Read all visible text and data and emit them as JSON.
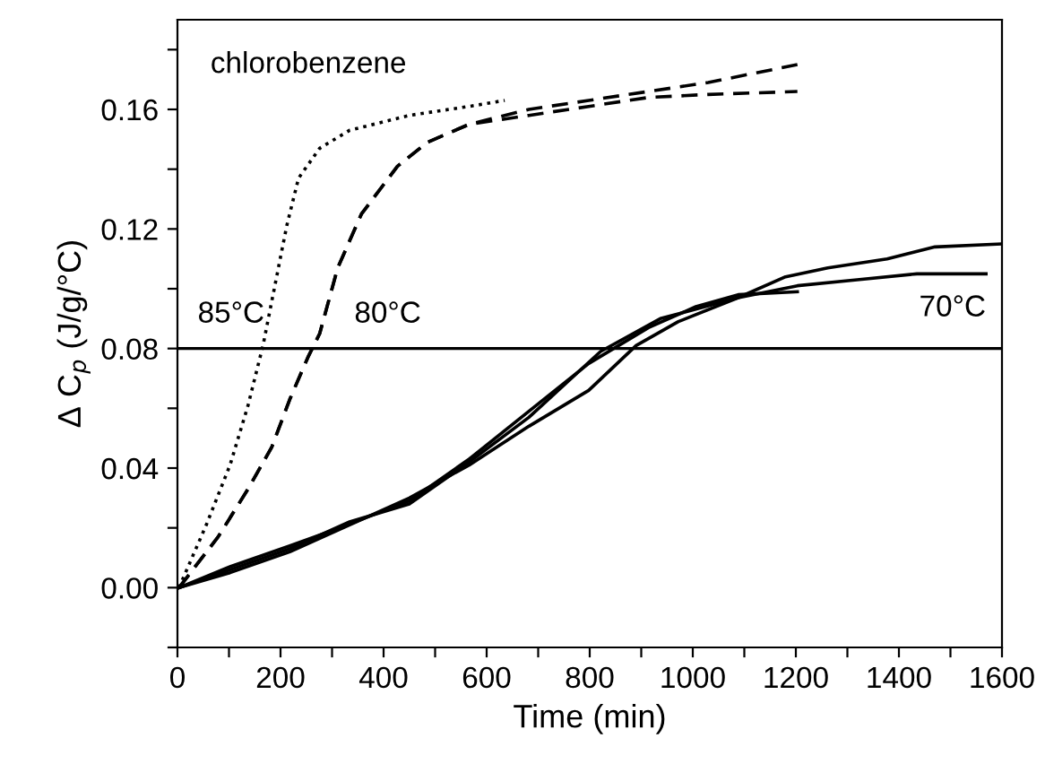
{
  "chart_data": {
    "type": "line",
    "xlabel": "Time (min)",
    "ylabel": "Δ C$_{p}$ (J/g/°C)",
    "xlim": [
      0,
      1600
    ],
    "ylim": [
      -0.02,
      0.19
    ],
    "xticks": [
      0,
      {
        "value": 100,
        "label": null
      },
      200,
      {
        "value": 300,
        "label": null
      },
      400,
      {
        "value": 500,
        "label": null
      },
      600,
      {
        "value": 700,
        "label": null
      },
      800,
      {
        "value": 900,
        "label": null
      },
      1000,
      {
        "value": 1100,
        "label": null
      },
      1200,
      {
        "value": 1300,
        "label": null
      },
      1400,
      {
        "value": 1500,
        "label": null
      },
      1600
    ],
    "yticks": [
      {
        "value": -0.02,
        "label": null
      },
      {
        "value": 0,
        "label": "0.00"
      },
      {
        "value": 0.02,
        "label": null
      },
      {
        "value": 0.04,
        "label": "0.04"
      },
      {
        "value": 0.06,
        "label": null
      },
      {
        "value": 0.08,
        "label": "0.08"
      },
      {
        "value": 0.1,
        "label": null
      },
      {
        "value": 0.12,
        "label": "0.12"
      },
      {
        "value": 0.14,
        "label": null
      },
      {
        "value": 0.16,
        "label": "0.16"
      },
      {
        "value": 0.18,
        "label": null
      }
    ],
    "grid": false,
    "legend": false,
    "marker": "none",
    "ref_lines": [
      {
        "axis": "y",
        "value": 0.08,
        "label": null,
        "color": "#000000",
        "line_style": "solid"
      }
    ],
    "annotations": [
      "chlorobenzene",
      "85°C",
      "80°C",
      "70°C"
    ],
    "series": [
      {
        "color": "#000000",
        "line_style": "dotted",
        "x": [
          3,
          56,
          102,
          137,
          166,
          189,
          212,
          235,
          276,
          334,
          450,
          566,
          635
        ],
        "values": [
          0,
          0.021,
          0.041,
          0.061,
          0.081,
          0.101,
          0.121,
          0.137,
          0.147,
          0.153,
          0.158,
          0.161,
          0.163
        ]
      },
      {
        "color": "#000000",
        "line_style": "dashed",
        "x": [
          3,
          79,
          137,
          183,
          218,
          253,
          276,
          311,
          357,
          427,
          485,
          566,
          682,
          798,
          914,
          1030,
          1203
        ],
        "values": [
          0,
          0.017,
          0.033,
          0.047,
          0.063,
          0.077,
          0.085,
          0.107,
          0.125,
          0.141,
          0.149,
          0.155,
          0.16,
          0.163,
          0.166,
          0.169,
          0.175
        ]
      },
      {
        "color": "#000000",
        "line_style": "dashed",
        "x": [
          3,
          79,
          137,
          183,
          218,
          253,
          276,
          311,
          357,
          427,
          485,
          566,
          682,
          798,
          914,
          1030,
          1203
        ],
        "values": [
          0,
          0.017,
          0.033,
          0.047,
          0.063,
          0.077,
          0.085,
          0.107,
          0.125,
          0.141,
          0.149,
          0.155,
          0.158,
          0.161,
          0.164,
          0.165,
          0.166
        ]
      },
      {
        "color": "#000000",
        "line_style": "solid",
        "x": [
          3,
          102,
          218,
          299,
          450,
          566,
          682,
          798,
          914,
          1006,
          1088,
          1203
        ],
        "values": [
          0,
          0.007,
          0.014,
          0.019,
          0.029,
          0.043,
          0.059,
          0.075,
          0.087,
          0.094,
          0.098,
          0.099
        ]
      },
      {
        "color": "#000000",
        "line_style": "solid",
        "x": [
          3,
          102,
          218,
          334,
          450,
          566,
          682,
          798,
          890,
          972,
          1088,
          1180,
          1262,
          1377,
          1470,
          1600
        ],
        "values": [
          0,
          0.005,
          0.012,
          0.021,
          0.03,
          0.041,
          0.054,
          0.066,
          0.081,
          0.089,
          0.097,
          0.104,
          0.107,
          0.11,
          0.114,
          0.115
        ]
      },
      {
        "color": "#000000",
        "line_style": "solid",
        "x": [
          3,
          102,
          218,
          334,
          450,
          566,
          682,
          821,
          937,
          1088,
          1203,
          1319,
          1435,
          1569
        ],
        "values": [
          0,
          0.006,
          0.013,
          0.022,
          0.028,
          0.042,
          0.057,
          0.079,
          0.09,
          0.097,
          0.101,
          0.103,
          0.105,
          0.105
        ]
      }
    ]
  }
}
